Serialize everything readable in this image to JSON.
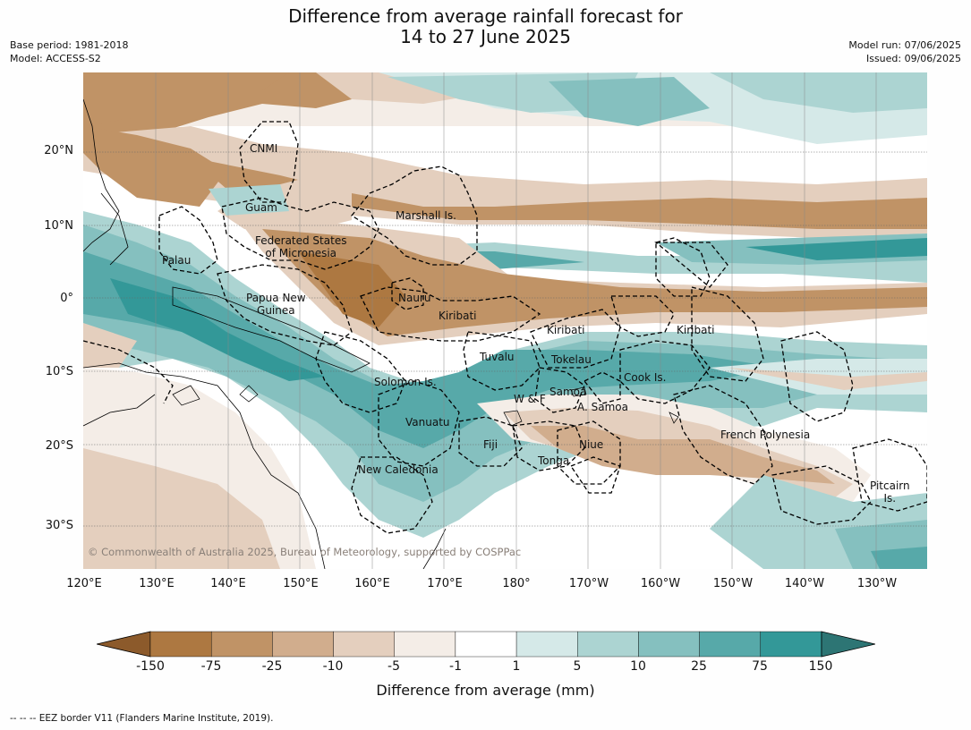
{
  "title": [
    "Difference from average rainfall forecast for",
    "14 to 27 June 2025"
  ],
  "meta_left": [
    "Base period: 1981-2018",
    "Model: ACCESS-S2"
  ],
  "meta_right": [
    "Model run: 07/06/2025",
    "Issued: 09/06/2025"
  ],
  "lat_labels": [
    "20°N",
    "10°N",
    "0°",
    "10°S",
    "20°S",
    "30°S"
  ],
  "lon_labels": [
    "120°E",
    "130°E",
    "140°E",
    "150°E",
    "160°E",
    "170°E",
    "180°",
    "170°W",
    "160°W",
    "150°W",
    "140°W",
    "130°W"
  ],
  "places": {
    "cnmi": "CNMI",
    "guam": "Guam",
    "marshall": "Marshall Is.",
    "fsm_1": "Federated States",
    "fsm_2": "of Micronesia",
    "palau": "Palau",
    "png_1": "Papua New",
    "png_2": "Guinea",
    "nauru": "Nauru",
    "kiribati_w": "Kiribati",
    "kiribati_c": "Kiribati",
    "kiribati_e": "Kiribati",
    "tuvalu": "Tuvalu",
    "tokelau": "Tokelau",
    "cook": "Cook Is.",
    "solomon": "Solomon Is.",
    "wf": "W & F",
    "samoa": "Samoa",
    "asamoa": "A. Samoa",
    "vanuatu": "Vanuatu",
    "fiji": "Fiji",
    "niue": "Niue",
    "tonga": "Tonga",
    "frpoly": "French Polynesia",
    "newcal": "New Caledonia",
    "pitcairn_1": "Pitcairn",
    "pitcairn_2": "Is."
  },
  "copyright": "© Commonwealth of Australia 2025, Bureau of Meteorology, supported by COSPPac",
  "colorbar": {
    "ticks": [
      "-150",
      "-75",
      "-25",
      "-10",
      "-5",
      "-1",
      "1",
      "5",
      "10",
      "25",
      "75",
      "150"
    ],
    "colors": [
      "#8c5a2b",
      "#ad7841",
      "#c09366",
      "#d1ad8d",
      "#e4cfbe",
      "#f4ede7",
      "#ffffff",
      "#d5e9e8",
      "#acd4d2",
      "#85c0bf",
      "#57a9a9",
      "#339898",
      "#2d7574"
    ],
    "label": "Difference from average (mm)"
  },
  "footnote": "--  --  -- EEZ border V11 (Flanders Marine Institute, 2019)."
}
